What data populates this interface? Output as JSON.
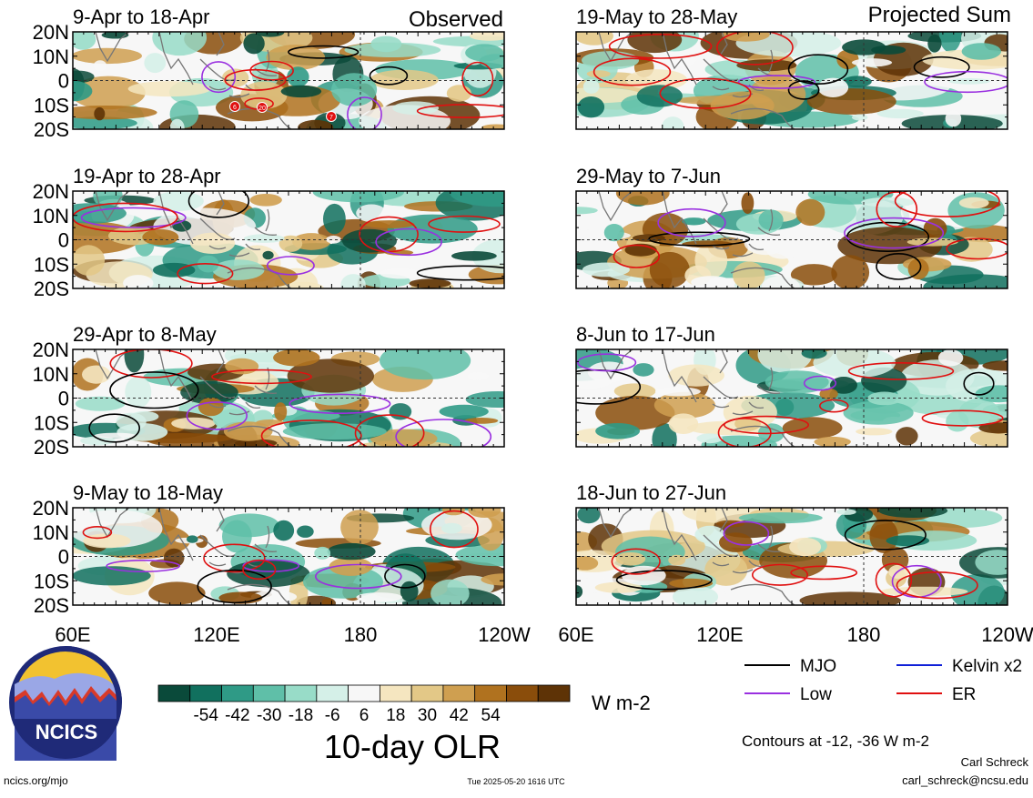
{
  "header": {
    "observed_label": "Observed",
    "projected_label": "Projected Sum"
  },
  "panels": [
    {
      "column": "observed",
      "row": 0,
      "title": "9-Apr to 18-Apr",
      "storm_markers": [
        "6",
        "20",
        "7"
      ]
    },
    {
      "column": "observed",
      "row": 1,
      "title": "19-Apr to 28-Apr"
    },
    {
      "column": "observed",
      "row": 2,
      "title": "29-Apr to 8-May"
    },
    {
      "column": "observed",
      "row": 3,
      "title": "9-May to 18-May"
    },
    {
      "column": "projected",
      "row": 0,
      "title": "19-May to 28-May"
    },
    {
      "column": "projected",
      "row": 1,
      "title": "29-May to 7-Jun"
    },
    {
      "column": "projected",
      "row": 2,
      "title": "8-Jun to 17-Jun"
    },
    {
      "column": "projected",
      "row": 3,
      "title": "18-Jun to 27-Jun"
    }
  ],
  "axes": {
    "lat_ticks": [
      "20N",
      "10N",
      "0",
      "10S",
      "20S"
    ],
    "lon_ticks": [
      "60E",
      "120E",
      "180",
      "120W"
    ]
  },
  "colorbar": {
    "labels": [
      "-54",
      "-42",
      "-30",
      "-18",
      "-6",
      "6",
      "18",
      "30",
      "42",
      "54"
    ],
    "colors": [
      "#0a4a3a",
      "#11705e",
      "#2f9a86",
      "#5fbfa8",
      "#98dcc8",
      "#d5f0e8",
      "#f7f7f7",
      "#f5e6c0",
      "#e3c887",
      "#cf9f50",
      "#b0721f",
      "#8a4d0b",
      "#5e3306"
    ],
    "units": "W m-2",
    "title": "10-day OLR"
  },
  "legend": {
    "items": [
      {
        "label": "MJO",
        "color": "#000000"
      },
      {
        "label": "Kelvin x2",
        "color": "#1020d8"
      },
      {
        "label": "Low",
        "color": "#9a30e0"
      },
      {
        "label": "ER",
        "color": "#e01010"
      }
    ],
    "contours_note": "Contours at -12, -36 W m-2"
  },
  "footer": {
    "site": "ncics.org/mjo",
    "timestamp": "Tue 2025-05-20 1616 UTC",
    "author": "Carl Schreck",
    "email": "carl_schreck@ncsu.edu",
    "logo_text": "NCICS"
  }
}
